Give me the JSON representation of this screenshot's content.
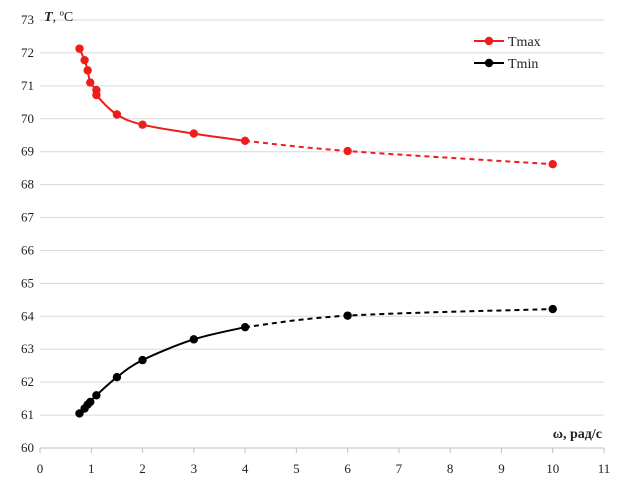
{
  "chart_data": {
    "type": "line",
    "xlabel": "ω, рад/с",
    "ylabel_symbol": "T",
    "ylabel_unit": ", ºC",
    "xlim": [
      0,
      11
    ],
    "ylim": [
      60,
      73
    ],
    "xticks": [
      0,
      1,
      2,
      3,
      4,
      5,
      6,
      7,
      8,
      9,
      10,
      11
    ],
    "yticks": [
      60,
      61,
      62,
      63,
      64,
      65,
      66,
      67,
      68,
      69,
      70,
      71,
      72,
      73
    ],
    "grid": "horizontal",
    "legend": "top-right",
    "series": [
      {
        "name": "Tmax",
        "color": "#ee1c1c",
        "x": [
          0.77,
          0.87,
          0.93,
          0.98,
          1.1,
          1.1,
          1.5,
          2.0,
          3.0,
          4.0,
          6.0,
          10.0
        ],
        "y": [
          72.13,
          71.78,
          71.47,
          71.1,
          70.87,
          70.72,
          70.13,
          69.82,
          69.55,
          69.33,
          69.02,
          68.62
        ],
        "dashed_from_x": 4.0
      },
      {
        "name": "Tmin",
        "color": "#000000",
        "x": [
          0.77,
          0.87,
          0.93,
          0.98,
          1.1,
          1.5,
          2.0,
          3.0,
          4.0,
          6.0,
          10.0
        ],
        "y": [
          61.05,
          61.2,
          61.32,
          61.4,
          61.6,
          62.15,
          62.67,
          63.3,
          63.67,
          64.02,
          64.22
        ],
        "dashed_from_x": 4.0
      }
    ]
  }
}
